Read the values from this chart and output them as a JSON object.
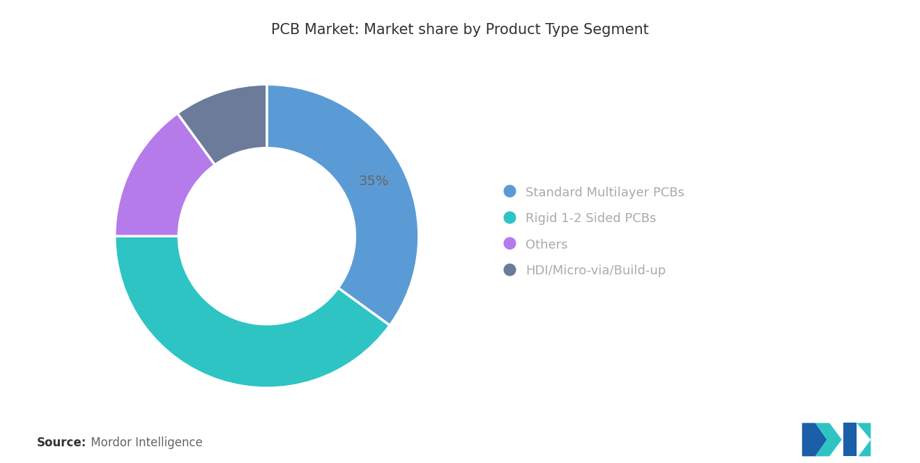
{
  "title": "PCB Market: Market share by Product Type Segment",
  "segments": [
    {
      "label": "Standard Multilayer PCBs",
      "value": 35,
      "color": "#5B9BD5"
    },
    {
      "label": "Rigid 1-2 Sided PCBs",
      "value": 40,
      "color": "#2EC4C4"
    },
    {
      "label": "Others",
      "value": 15,
      "color": "#B57BEA"
    },
    {
      "label": "HDI/Micro-via/Build-up",
      "value": 10,
      "color": "#6B7B99"
    }
  ],
  "annotated_segment": 0,
  "annotated_label": "35%",
  "source_bold": "Source:",
  "source_text": " Mordor Intelligence",
  "background_color": "#ffffff",
  "title_fontsize": 15,
  "legend_fontsize": 13,
  "source_fontsize": 12,
  "donut_width": 0.42,
  "start_angle": 90,
  "legend_text_color": "#aaaaaa",
  "annotation_color": "#666666"
}
